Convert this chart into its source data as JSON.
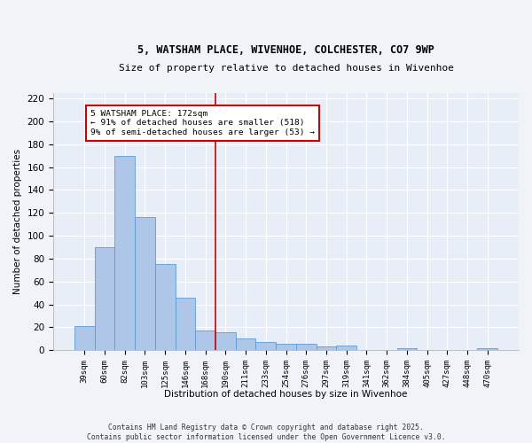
{
  "title1": "5, WATSHAM PLACE, WIVENHOE, COLCHESTER, CO7 9WP",
  "title2": "Size of property relative to detached houses in Wivenhoe",
  "xlabel": "Distribution of detached houses by size in Wivenhoe",
  "ylabel": "Number of detached properties",
  "bar_labels": [
    "39sqm",
    "60sqm",
    "82sqm",
    "103sqm",
    "125sqm",
    "146sqm",
    "168sqm",
    "190sqm",
    "211sqm",
    "233sqm",
    "254sqm",
    "276sqm",
    "297sqm",
    "319sqm",
    "341sqm",
    "362sqm",
    "384sqm",
    "405sqm",
    "427sqm",
    "448sqm",
    "470sqm"
  ],
  "bar_values": [
    21,
    90,
    170,
    116,
    75,
    46,
    17,
    16,
    10,
    7,
    6,
    6,
    3,
    4,
    0,
    0,
    2,
    0,
    0,
    0,
    2
  ],
  "bar_color": "#aec6e8",
  "bar_edge_color": "#5b9bd5",
  "vline_index": 6,
  "vline_color": "#cc0000",
  "annotation_line1": "5 WATSHAM PLACE: 172sqm",
  "annotation_line2": "← 91% of detached houses are smaller (518)",
  "annotation_line3": "9% of semi-detached houses are larger (53) →",
  "annotation_box_color": "#ffffff",
  "annotation_box_edge": "#cc0000",
  "ylim": [
    0,
    225
  ],
  "yticks": [
    0,
    20,
    40,
    60,
    80,
    100,
    120,
    140,
    160,
    180,
    200,
    220
  ],
  "background_color": "#e8eef7",
  "fig_background": "#f0f4f8",
  "grid_color": "#ffffff",
  "footer1": "Contains HM Land Registry data © Crown copyright and database right 2025.",
  "footer2": "Contains public sector information licensed under the Open Government Licence v3.0."
}
